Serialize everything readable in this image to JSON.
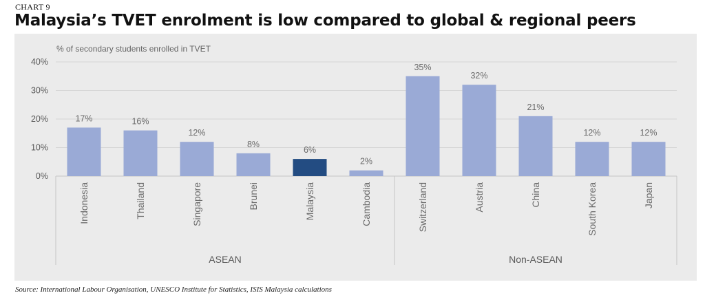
{
  "header": {
    "chart_number": "CHART 9",
    "title": "Malaysia’s TVET enrolment is low compared to global & regional peers"
  },
  "footer": {
    "source": "Source: International Labour Organisation, UNESCO Institute for Statistics, ISIS Malaysia calculations"
  },
  "colors": {
    "bar_default": "#9aaad6",
    "bar_highlight": "#234c82",
    "panel_background": "#ebebeb"
  },
  "chart_data": {
    "type": "bar",
    "ylabel": "% of secondary students enrolled in TVET",
    "ylim": [
      0,
      40
    ],
    "y_ticks": [
      "0%",
      "10%",
      "20%",
      "30%",
      "40%"
    ],
    "categories": [
      "Indonesia",
      "Thailand",
      "Singapore",
      "Brunei",
      "Malaysia",
      "Cambodia",
      "Switzerland",
      "Austria",
      "China",
      "South Korea",
      "Japan"
    ],
    "values": [
      17,
      16,
      12,
      8,
      6,
      2,
      35,
      32,
      21,
      12,
      12
    ],
    "data_labels": [
      "17%",
      "16%",
      "12%",
      "8%",
      "6%",
      "2%",
      "35%",
      "32%",
      "21%",
      "12%",
      "12%"
    ],
    "highlight": "Malaysia",
    "groups": [
      {
        "name": "ASEAN",
        "categories": [
          "Indonesia",
          "Thailand",
          "Singapore",
          "Brunei",
          "Malaysia",
          "Cambodia"
        ]
      },
      {
        "name": "Non-ASEAN",
        "categories": [
          "Switzerland",
          "Austria",
          "China",
          "South Korea",
          "Japan"
        ]
      }
    ],
    "grid": true
  }
}
